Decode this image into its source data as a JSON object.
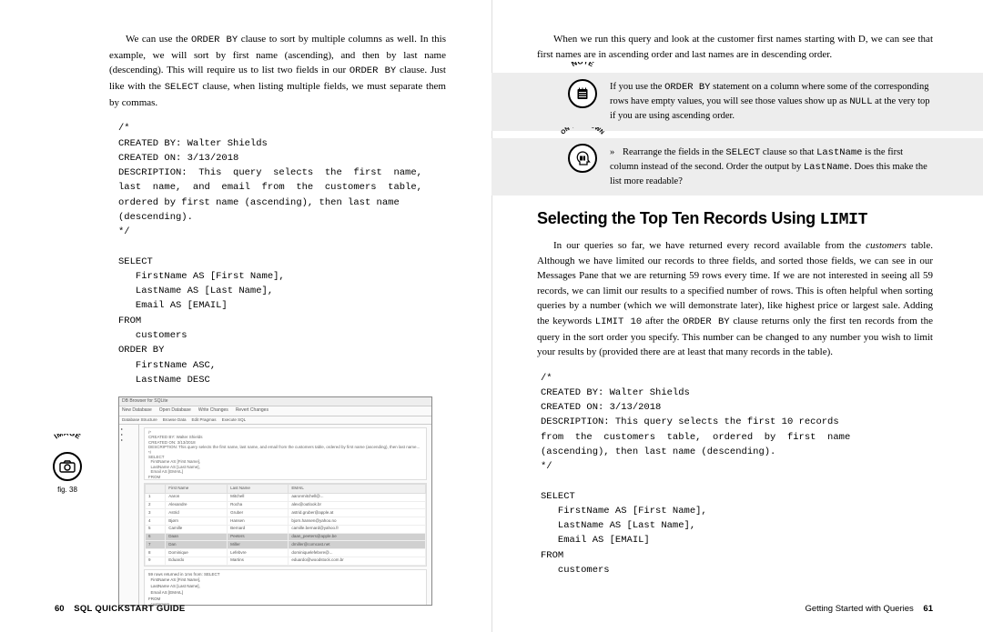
{
  "left": {
    "para1_a": "We can use the ",
    "para1_code1": "ORDER BY",
    "para1_b": " clause to sort by multiple columns as well. In this example, we will sort by first name (ascending), and then by last name (descending). This will require us to list two fields in our ",
    "para1_code2": "ORDER BY",
    "para1_c": " clause. Just like with the ",
    "para1_code3": "SELECT",
    "para1_d": " clause, when listing multiple fields, we must separate them by commas.",
    "code1_l1": "/*",
    "code1_l2": "CREATED BY: Walter Shields",
    "code1_l3": "CREATED ON: 3/13/2018",
    "code1_l4": "DESCRIPTION:  This  query  selects  the  first  name,",
    "code1_l5": "last  name,  and  email  from  the  customers  table,",
    "code1_l6": "ordered by first name (ascending), then last name",
    "code1_l7": "(descending).",
    "code1_l8": "*/",
    "code1_l9": "",
    "code1_l10": "SELECT",
    "code1_l11": "   FirstName AS [First Name],",
    "code1_l12": "   LastName AS [Last Name],",
    "code1_l13": "   Email AS [EMAIL]",
    "code1_l14": "FROM",
    "code1_l15": "   customers",
    "code1_l16": "ORDER BY",
    "code1_l17": "   FirstName ASC,",
    "code1_l18": "   LastName DESC",
    "image_badge": "IMAGE",
    "fig_label": "fig. 38",
    "screenshot": {
      "title": "DB Browser for SQLite",
      "toolbar": [
        "New Database",
        "Open Database",
        "Write Changes",
        "Revert Changes"
      ],
      "tabs": [
        "Database Structure",
        "Browse Data",
        "Edit Pragmas",
        "Execute SQL"
      ],
      "sql_preview": "/*\nCREATED BY: Walter Shields\nCREATED ON: 3/13/2018\nDESCRIPTION: This query selects the first name, last name, and email from the customers table, ordered by first name (ascending), then last name...\n*/\nSELECT\n  FirstName AS [First Name],\n  LastName AS [Last Name],\n  Email AS [EMAIL]\nFROM\n  customers\nORDER BY",
      "cols": [
        "",
        "First Name",
        "Last Name",
        "EMAIL"
      ],
      "rows": [
        [
          "1",
          "Aaron",
          "Mitchell",
          "aaronmitchell@..."
        ],
        [
          "2",
          "Alexandre",
          "Rocha",
          "alex@outlook.br"
        ],
        [
          "3",
          "Astrid",
          "Gruber",
          "astrid.gruber@apple.at"
        ],
        [
          "4",
          "Bjørn",
          "Hansen",
          "bjorn.hansen@yahoo.no"
        ],
        [
          "5",
          "Camille",
          "Bernard",
          "camille.bernard@yahoo.fr"
        ],
        [
          "6",
          "Daan",
          "Peeters",
          "daan_peeters@apple.be"
        ],
        [
          "7",
          "Dan",
          "Miller",
          "dmiller@comcast.net"
        ],
        [
          "8",
          "Dominique",
          "Lefebvre",
          "dominiquelefebvre@..."
        ],
        [
          "9",
          "Eduardo",
          "Martins",
          "eduardo@woodstock.com.br"
        ]
      ],
      "lower": "59 rows returned in 1ms from: SELECT\n  FirstName AS [First Name],\n  LastName AS [Last Name],\n  Email AS [EMAIL]\nFROM\n  customers\nORDER BY\n  FirstName ASC,\n  LastName DESC"
    },
    "footer_page": "60",
    "footer_title": "SQL QUICKSTART GUIDE"
  },
  "right": {
    "para1": "When we run this query and look at the customer first names starting with D, we can see that first names are in ascending order and last names are in descending order.",
    "note_label": "NOTE",
    "note_a": "If you use the ",
    "note_code1": "ORDER BY",
    "note_b": " statement on a column where some of the corresponding rows have empty values, you will see those values show up as ",
    "note_code2": "NULL",
    "note_c": " at the very top if you are using ascending order.",
    "own_label": "ON YOUR OWN",
    "own_a": "Rearrange the fields in the ",
    "own_code1": "SELECT",
    "own_b": " clause so that ",
    "own_code2": "LastName",
    "own_c": " is the first column instead of the second. Order the output by ",
    "own_code3": "LastName",
    "own_d": ". Does this make the list more readable?",
    "heading_a": "Selecting the Top Ten Records Using ",
    "heading_code": "LIMIT",
    "para2_a": "In our queries so far, we have returned every record available from the ",
    "para2_i": "customers",
    "para2_b": " table. Although we have limited our records to three fields, and sorted those fields, we can see in our Messages Pane that we are returning 59 rows every time. If we are not interested in seeing all 59 records, we can limit our results to a specified number of rows. This is often helpful when sorting queries by a number (which we will demonstrate later), like highest price or largest sale. Adding the keywords ",
    "para2_code1": "LIMIT 10",
    "para2_c": " after the ",
    "para2_code2": "ORDER BY",
    "para2_d": " clause returns only the first ten records from the query in the sort order you specify. This number can be changed to any number you wish to limit your results by (provided there are at least that many records in the table).",
    "code2_l1": "/*",
    "code2_l2": "CREATED BY: Walter Shields",
    "code2_l3": "CREATED ON: 3/13/2018",
    "code2_l4": "DESCRIPTION: This query selects the first 10 records",
    "code2_l5": "from  the  customers  table,  ordered  by  first  name",
    "code2_l6": "(ascending), then last name (descending).",
    "code2_l7": "*/",
    "code2_l8": "",
    "code2_l9": "SELECT",
    "code2_l10": "   FirstName AS [First Name],",
    "code2_l11": "   LastName AS [Last Name],",
    "code2_l12": "   Email AS [EMAIL]",
    "code2_l13": "FROM",
    "code2_l14": "   customers",
    "footer_title": "Getting Started with Queries",
    "footer_page": "61"
  }
}
